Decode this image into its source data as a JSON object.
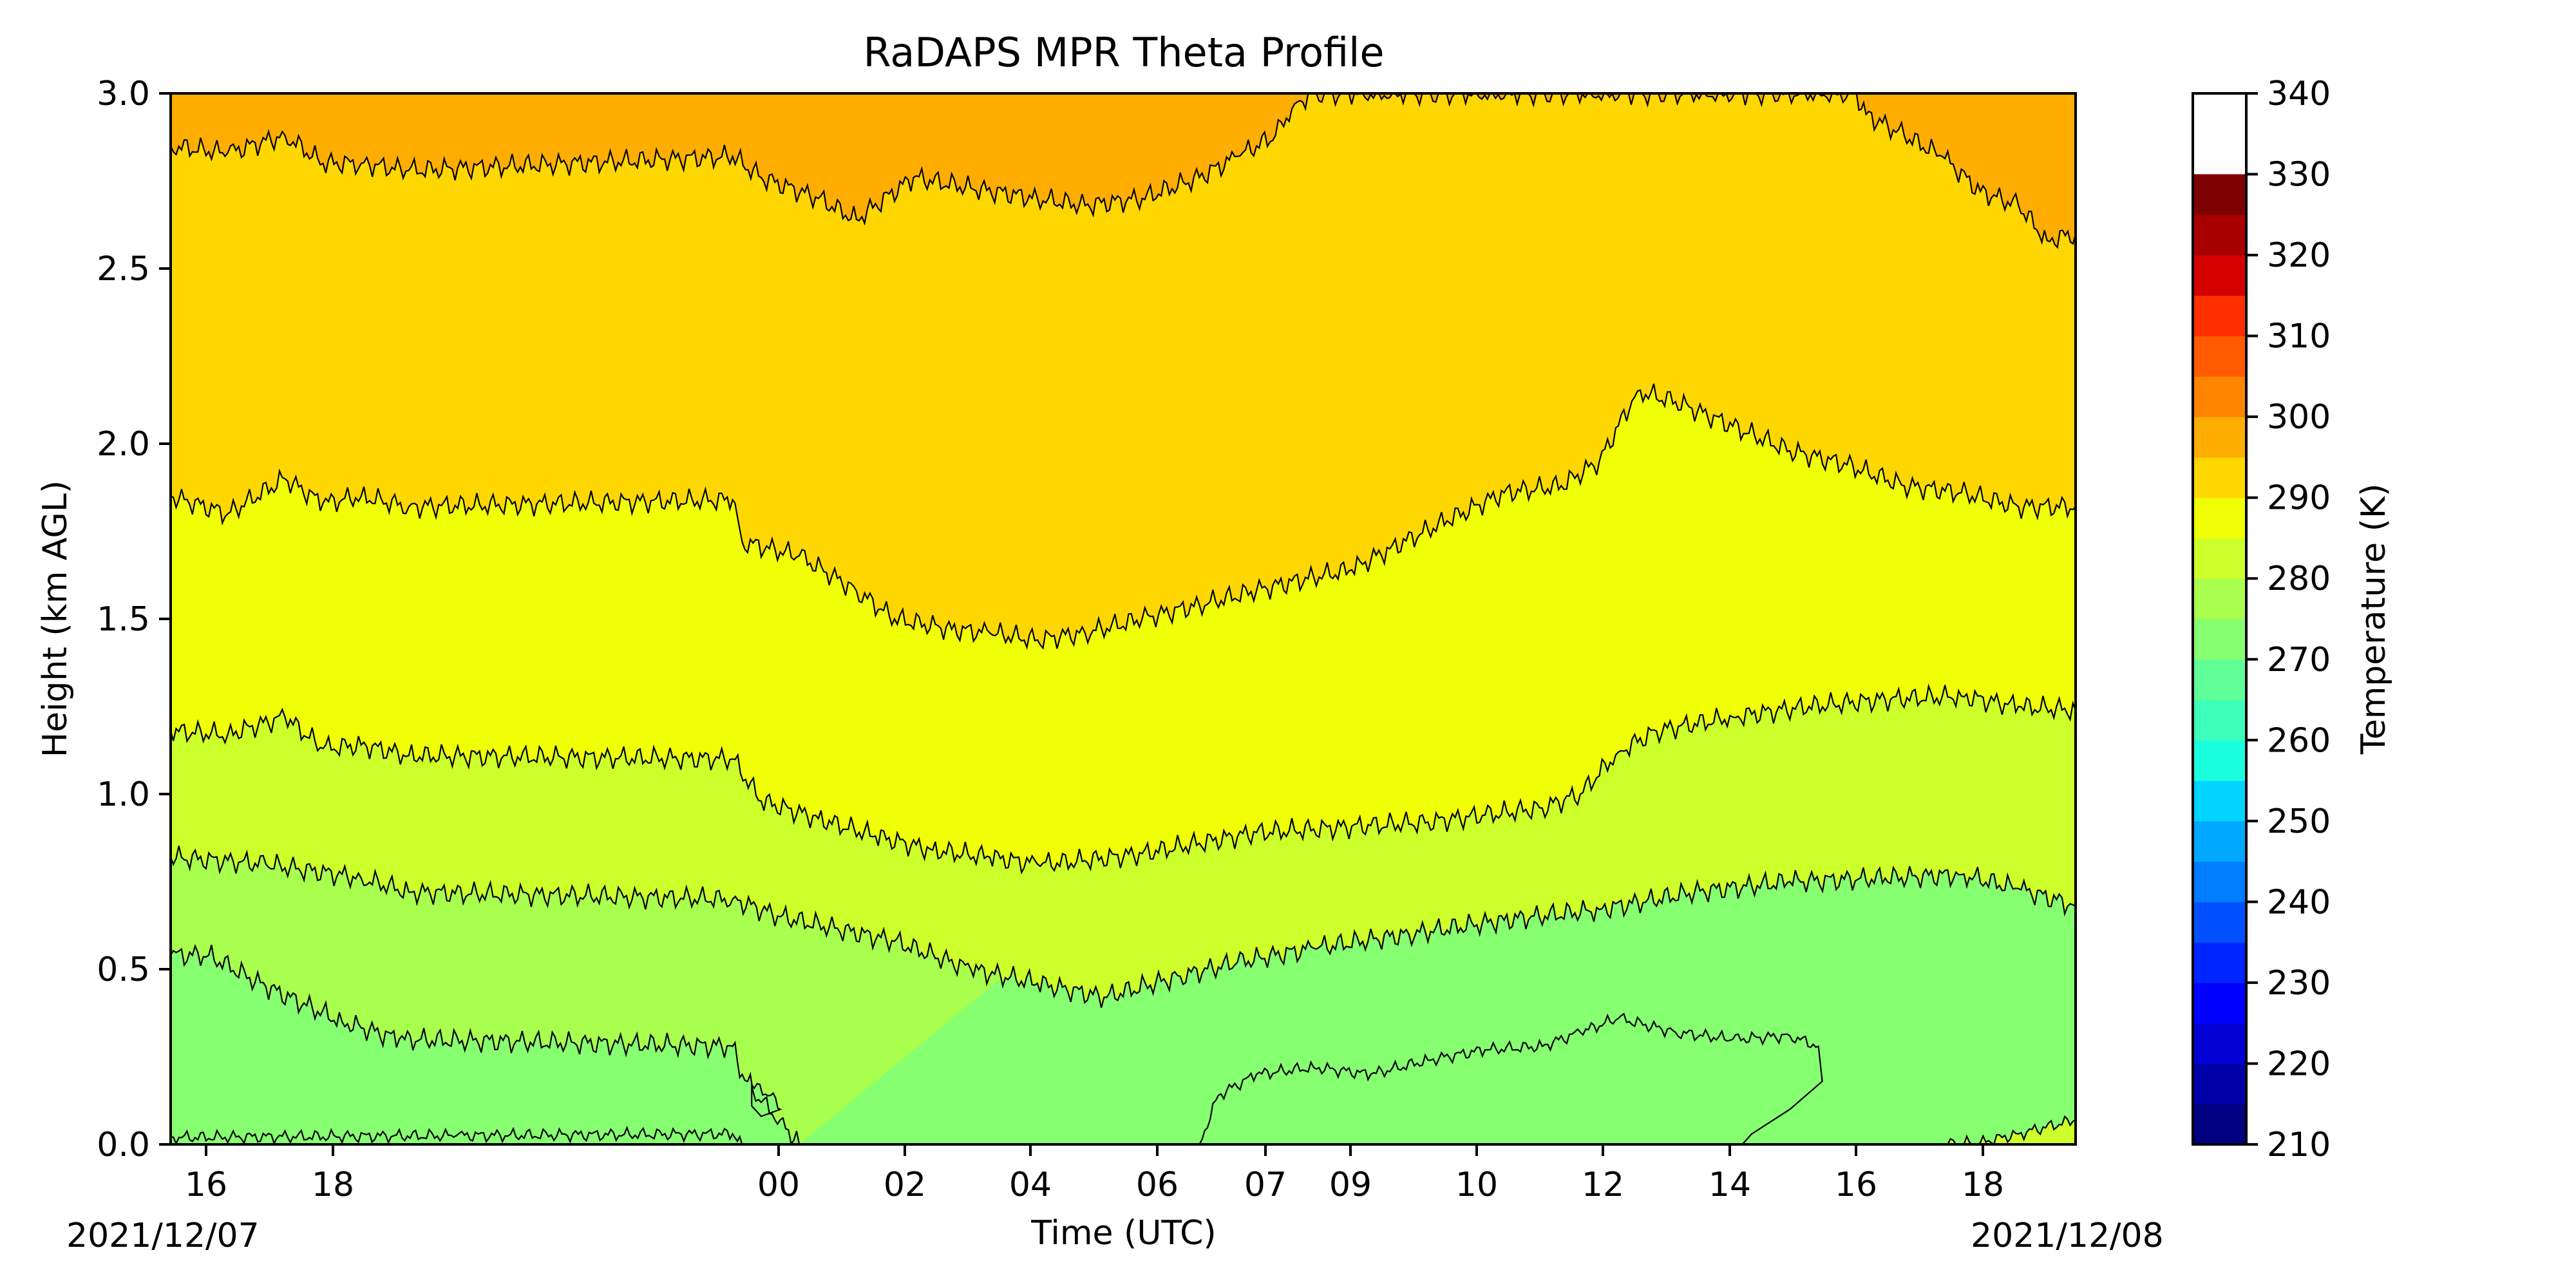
{
  "chart_data": {
    "type": "heatmap",
    "subtype": "filled-contour",
    "title": "RaDAPS MPR Theta Profile",
    "xlabel": "Time (UTC)",
    "ylabel": "Height (km AGL)",
    "ylim": [
      0.0,
      3.0
    ],
    "x_ticks": [
      "16",
      "18",
      "00",
      "02",
      "04",
      "06",
      "07",
      "09",
      "10",
      "12",
      "14",
      "16",
      "18"
    ],
    "y_ticks": [
      "0.0",
      "0.5",
      "1.0",
      "1.5",
      "2.0",
      "2.5",
      "3.0"
    ],
    "date_start": "2021/12/07",
    "date_end": "2021/12/08",
    "colorbar": {
      "label": "Temperature (K)",
      "range": [
        210,
        340
      ],
      "step": 5,
      "ticks": [
        "210",
        "220",
        "230",
        "240",
        "250",
        "260",
        "270",
        "280",
        "290",
        "300",
        "310",
        "320",
        "330",
        "340"
      ],
      "colors": [
        "#000080",
        "#0000a8",
        "#0000d3",
        "#0000ff",
        "#0024ff",
        "#0050ff",
        "#007cff",
        "#00a8ff",
        "#00d4ff",
        "#19ffde",
        "#3dffb9",
        "#60ff97",
        "#86ff70",
        "#a8ff4d",
        "#cdff2a",
        "#f0ff06",
        "#ffd700",
        "#ffad00",
        "#ff8400",
        "#ff5a00",
        "#ff2f00",
        "#d40000",
        "#a80000",
        "#7f0000"
      ]
    },
    "contour_levels": [
      {
        "level": 275,
        "color": "#86ff70"
      },
      {
        "level": 280,
        "color": "#a8ff4d"
      },
      {
        "level": 285,
        "color": "#cdff2a"
      },
      {
        "level": 290,
        "color": "#f0ff06"
      },
      {
        "level": 295,
        "color": "#ffd700"
      },
      {
        "level": 300,
        "color": "#ffad00"
      }
    ],
    "boundaries": [
      {
        "upper_level": 280,
        "points": [
          [
            0.0,
            0.54
          ],
          [
            0.02,
            0.54
          ],
          [
            0.05,
            0.45
          ],
          [
            0.09,
            0.35
          ],
          [
            0.12,
            0.3
          ],
          [
            0.295,
            0.28
          ],
          [
            0.3,
            0.2
          ],
          [
            0.31,
            0.12
          ],
          [
            0.32,
            0.07
          ],
          [
            0.33,
            0.0
          ]
        ]
      },
      {
        "upper_level": 285,
        "points": [
          [
            0.0,
            0.82
          ],
          [
            0.05,
            0.8
          ],
          [
            0.1,
            0.76
          ],
          [
            0.125,
            0.72
          ],
          [
            0.295,
            0.7
          ],
          [
            0.32,
            0.65
          ],
          [
            0.38,
            0.58
          ],
          [
            0.42,
            0.5
          ],
          [
            0.455,
            0.46
          ],
          [
            0.49,
            0.42
          ],
          [
            0.53,
            0.48
          ],
          [
            0.56,
            0.52
          ],
          [
            0.6,
            0.56
          ],
          [
            0.65,
            0.6
          ],
          [
            0.7,
            0.64
          ],
          [
            0.75,
            0.67
          ],
          [
            0.8,
            0.72
          ],
          [
            0.85,
            0.75
          ],
          [
            0.9,
            0.76
          ],
          [
            0.94,
            0.77
          ],
          [
            0.97,
            0.73
          ],
          [
            1.0,
            0.68
          ]
        ]
      },
      {
        "upper_level": 290,
        "points": [
          [
            0.0,
            1.18
          ],
          [
            0.03,
            1.17
          ],
          [
            0.06,
            1.22
          ],
          [
            0.08,
            1.13
          ],
          [
            0.1,
            1.14
          ],
          [
            0.125,
            1.11
          ],
          [
            0.295,
            1.1
          ],
          [
            0.31,
            0.98
          ],
          [
            0.34,
            0.93
          ],
          [
            0.37,
            0.88
          ],
          [
            0.4,
            0.84
          ],
          [
            0.43,
            0.82
          ],
          [
            0.455,
            0.8
          ],
          [
            0.48,
            0.81
          ],
          [
            0.51,
            0.83
          ],
          [
            0.54,
            0.86
          ],
          [
            0.57,
            0.89
          ],
          [
            0.6,
            0.9
          ],
          [
            0.63,
            0.91
          ],
          [
            0.66,
            0.92
          ],
          [
            0.69,
            0.94
          ],
          [
            0.72,
            0.96
          ],
          [
            0.74,
            1.0
          ],
          [
            0.76,
            1.12
          ],
          [
            0.78,
            1.18
          ],
          [
            0.82,
            1.22
          ],
          [
            0.86,
            1.25
          ],
          [
            0.9,
            1.27
          ],
          [
            0.94,
            1.28
          ],
          [
            0.97,
            1.25
          ],
          [
            1.0,
            1.24
          ]
        ]
      },
      {
        "upper_level": 295,
        "points": [
          [
            0.0,
            1.85
          ],
          [
            0.03,
            1.8
          ],
          [
            0.06,
            1.9
          ],
          [
            0.08,
            1.83
          ],
          [
            0.1,
            1.85
          ],
          [
            0.125,
            1.82
          ],
          [
            0.295,
            1.84
          ],
          [
            0.3,
            1.72
          ],
          [
            0.33,
            1.68
          ],
          [
            0.36,
            1.58
          ],
          [
            0.38,
            1.5
          ],
          [
            0.41,
            1.47
          ],
          [
            0.43,
            1.46
          ],
          [
            0.455,
            1.44
          ],
          [
            0.48,
            1.46
          ],
          [
            0.51,
            1.5
          ],
          [
            0.54,
            1.54
          ],
          [
            0.57,
            1.58
          ],
          [
            0.6,
            1.62
          ],
          [
            0.62,
            1.64
          ],
          [
            0.64,
            1.7
          ],
          [
            0.67,
            1.78
          ],
          [
            0.7,
            1.86
          ],
          [
            0.73,
            1.88
          ],
          [
            0.75,
            1.95
          ],
          [
            0.77,
            2.15
          ],
          [
            0.79,
            2.12
          ],
          [
            0.82,
            2.05
          ],
          [
            0.85,
            1.98
          ],
          [
            0.88,
            1.94
          ],
          [
            0.91,
            1.88
          ],
          [
            0.94,
            1.86
          ],
          [
            0.97,
            1.82
          ],
          [
            1.0,
            1.82
          ]
        ]
      },
      {
        "upper_level": 300,
        "points": [
          [
            0.0,
            2.85
          ],
          [
            0.03,
            2.83
          ],
          [
            0.06,
            2.88
          ],
          [
            0.08,
            2.8
          ],
          [
            0.1,
            2.8
          ],
          [
            0.125,
            2.78
          ],
          [
            0.295,
            2.82
          ],
          [
            0.31,
            2.76
          ],
          [
            0.34,
            2.7
          ],
          [
            0.36,
            2.64
          ],
          [
            0.39,
            2.76
          ],
          [
            0.42,
            2.73
          ],
          [
            0.455,
            2.7
          ],
          [
            0.48,
            2.68
          ],
          [
            0.51,
            2.7
          ],
          [
            0.54,
            2.76
          ],
          [
            0.56,
            2.82
          ],
          [
            0.58,
            2.88
          ],
          [
            0.59,
            2.97
          ],
          [
            0.6,
            3.0
          ],
          [
            0.885,
            3.0
          ],
          [
            0.89,
            2.94
          ],
          [
            0.91,
            2.88
          ],
          [
            0.93,
            2.82
          ],
          [
            0.95,
            2.72
          ],
          [
            0.97,
            2.68
          ],
          [
            0.985,
            2.58
          ],
          [
            1.0,
            2.6
          ]
        ]
      }
    ],
    "islands": [
      {
        "level": 275,
        "points": [
          [
            0.0,
            0.0
          ],
          [
            0.0,
            0.02
          ],
          [
            0.15,
            0.025
          ],
          [
            0.295,
            0.03
          ],
          [
            0.3,
            0.0
          ]
        ]
      },
      {
        "level": 275,
        "points": [
          [
            0.54,
            0.0
          ],
          [
            0.55,
            0.14
          ],
          [
            0.57,
            0.2
          ],
          [
            0.6,
            0.22
          ],
          [
            0.63,
            0.2
          ],
          [
            0.66,
            0.24
          ],
          [
            0.69,
            0.27
          ],
          [
            0.72,
            0.28
          ],
          [
            0.74,
            0.32
          ],
          [
            0.76,
            0.36
          ],
          [
            0.79,
            0.32
          ],
          [
            0.82,
            0.3
          ],
          [
            0.85,
            0.31
          ],
          [
            0.865,
            0.28
          ],
          [
            0.867,
            0.18
          ],
          [
            0.85,
            0.1
          ],
          [
            0.83,
            0.03
          ],
          [
            0.825,
            0.0
          ]
        ]
      },
      {
        "level": 275,
        "points": [
          [
            0.305,
            0.17
          ],
          [
            0.315,
            0.14
          ],
          [
            0.32,
            0.1
          ],
          [
            0.31,
            0.08
          ],
          [
            0.305,
            0.11
          ]
        ]
      },
      {
        "level": 285,
        "points": [
          [
            0.93,
            0.0
          ],
          [
            0.95,
            0.005
          ],
          [
            0.97,
            0.03
          ],
          [
            1.0,
            0.07
          ],
          [
            1.0,
            0.0
          ]
        ]
      }
    ]
  }
}
